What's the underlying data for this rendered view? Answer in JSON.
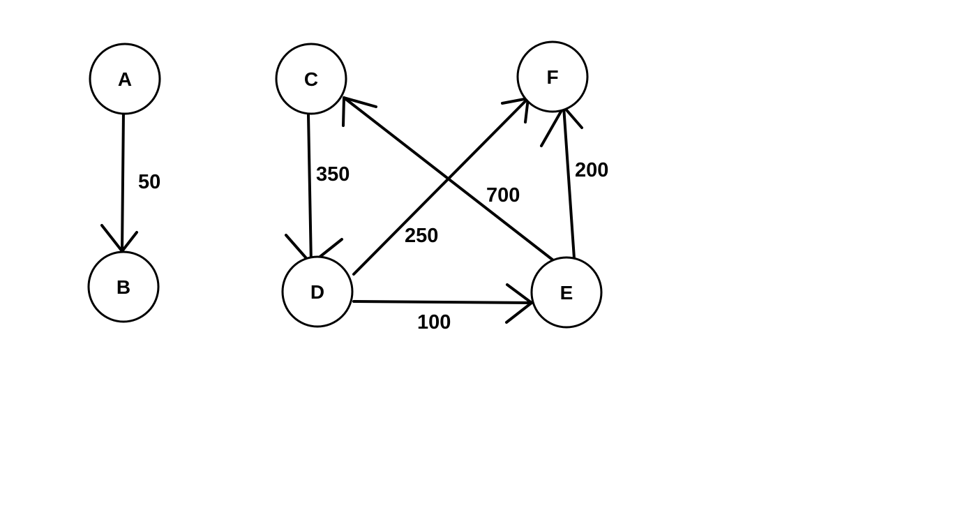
{
  "diagram": {
    "type": "directed-weighted-graph",
    "colors": {
      "background": "#ffffff",
      "stroke": "#000000",
      "text": "#000000"
    },
    "nodes": [
      {
        "id": "A",
        "label": "A"
      },
      {
        "id": "B",
        "label": "B"
      },
      {
        "id": "C",
        "label": "C"
      },
      {
        "id": "D",
        "label": "D"
      },
      {
        "id": "E",
        "label": "E"
      },
      {
        "id": "F",
        "label": "F"
      }
    ],
    "edges": [
      {
        "from": "A",
        "to": "B",
        "weight": "50"
      },
      {
        "from": "C",
        "to": "D",
        "weight": "350"
      },
      {
        "from": "D",
        "to": "F",
        "weight": "250"
      },
      {
        "from": "E",
        "to": "C",
        "weight": "700"
      },
      {
        "from": "E",
        "to": "F",
        "weight": "200"
      },
      {
        "from": "D",
        "to": "E",
        "weight": "100"
      }
    ]
  }
}
